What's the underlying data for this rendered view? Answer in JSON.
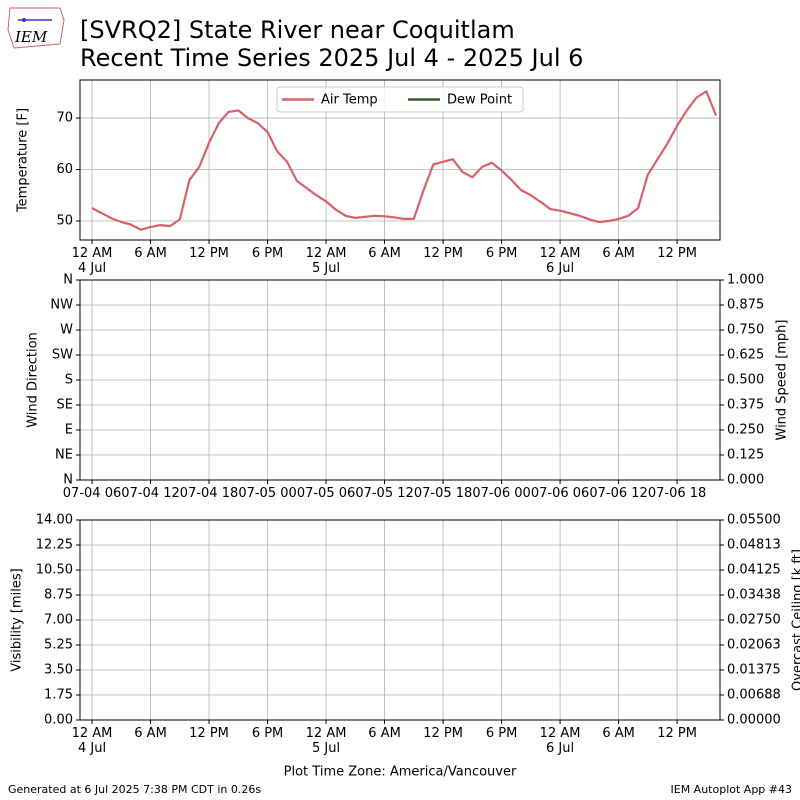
{
  "header": {
    "title": "[SVRQ2] State River near Coquitlam",
    "subtitle": "Recent Time Series 2025 Jul 4 - 2025 Jul 6",
    "logo": "IEM"
  },
  "footer": {
    "generated": "Generated at 6 Jul 2025 7:38 PM CDT in 0.26s",
    "app": "IEM Autoplot App #43"
  },
  "chart_data": [
    {
      "type": "line",
      "ylabel": "Temperature [F]",
      "grid": true,
      "legend": "upper center",
      "xlim": [
        "2025-07-03 22:46",
        "2025-07-06 16:24"
      ],
      "xticks": [
        {
          "value": "2025-07-04 00:00",
          "label": "12 AM\n4 Jul"
        },
        {
          "value": "2025-07-04 06:00",
          "label": "6 AM"
        },
        {
          "value": "2025-07-04 12:00",
          "label": "12 PM"
        },
        {
          "value": "2025-07-04 18:00",
          "label": "6 PM"
        },
        {
          "value": "2025-07-05 00:00",
          "label": "12 AM\n5 Jul"
        },
        {
          "value": "2025-07-05 06:00",
          "label": "6 AM"
        },
        {
          "value": "2025-07-05 12:00",
          "label": "12 PM"
        },
        {
          "value": "2025-07-05 18:00",
          "label": "6 PM"
        },
        {
          "value": "2025-07-06 00:00",
          "label": "12 AM\n6 Jul"
        },
        {
          "value": "2025-07-06 06:00",
          "label": "6 AM"
        },
        {
          "value": "2025-07-06 12:00",
          "label": "12 PM"
        }
      ],
      "ylim": [
        46.3,
        77.4
      ],
      "yticks": [
        50,
        60,
        70
      ],
      "x": [
        "2025-07-04 00:00",
        "2025-07-04 01:00",
        "2025-07-04 02:00",
        "2025-07-04 03:00",
        "2025-07-04 04:00",
        "2025-07-04 05:00",
        "2025-07-04 06:00",
        "2025-07-04 07:00",
        "2025-07-04 08:00",
        "2025-07-04 09:00",
        "2025-07-04 10:00",
        "2025-07-04 11:00",
        "2025-07-04 12:00",
        "2025-07-04 13:00",
        "2025-07-04 14:00",
        "2025-07-04 15:00",
        "2025-07-04 16:00",
        "2025-07-04 17:00",
        "2025-07-04 18:00",
        "2025-07-04 19:00",
        "2025-07-04 20:00",
        "2025-07-04 21:00",
        "2025-07-04 22:00",
        "2025-07-04 23:00",
        "2025-07-05 00:00",
        "2025-07-05 01:00",
        "2025-07-05 02:00",
        "2025-07-05 03:00",
        "2025-07-05 04:00",
        "2025-07-05 05:00",
        "2025-07-05 06:00",
        "2025-07-05 07:00",
        "2025-07-05 08:00",
        "2025-07-05 09:00",
        "2025-07-05 10:00",
        "2025-07-05 11:00",
        "2025-07-05 12:00",
        "2025-07-05 13:00",
        "2025-07-05 14:00",
        "2025-07-05 15:00",
        "2025-07-05 16:00",
        "2025-07-05 17:00",
        "2025-07-05 18:00",
        "2025-07-05 19:00",
        "2025-07-05 20:00",
        "2025-07-05 21:00",
        "2025-07-05 22:00",
        "2025-07-05 23:00",
        "2025-07-06 00:00",
        "2025-07-06 01:00",
        "2025-07-06 02:00",
        "2025-07-06 03:00",
        "2025-07-06 04:00",
        "2025-07-06 05:00",
        "2025-07-06 06:00",
        "2025-07-06 07:00",
        "2025-07-06 08:00",
        "2025-07-06 09:00",
        "2025-07-06 10:00",
        "2025-07-06 11:00",
        "2025-07-06 12:00",
        "2025-07-06 13:00",
        "2025-07-06 14:00",
        "2025-07-06 15:00",
        "2025-07-06 16:00"
      ],
      "series": [
        {
          "name": "Air Temp",
          "color": "#d9606a",
          "values": [
            52.5,
            51.5,
            50.5,
            49.8,
            49.3,
            48.3,
            48.8,
            49.2,
            49.0,
            50.3,
            58,
            60.5,
            65.2,
            69,
            71.2,
            71.5,
            70,
            69,
            67.3,
            63.5,
            61.5,
            57.8,
            56.4,
            55,
            53.8,
            52.2,
            51,
            50.6,
            50.8,
            51,
            50.9,
            50.7,
            50.4,
            50.4,
            56,
            61,
            61.5,
            62,
            59.5,
            58.5,
            60.5,
            61.3,
            59.8,
            58,
            56,
            55,
            53.7,
            52.3,
            52,
            51.5,
            51,
            50.3,
            49.8,
            50,
            50.4,
            51,
            52.5,
            59,
            62,
            65,
            68.5,
            71.5,
            74,
            75.2,
            70.5
          ]
        },
        {
          "name": "Dew Point",
          "color": "#2f5f2f",
          "values": [
            null,
            null,
            null,
            null,
            null,
            null,
            null,
            null,
            null,
            null,
            null,
            null,
            null,
            null,
            null,
            null,
            null,
            null,
            null,
            null,
            null,
            null,
            null,
            null,
            null,
            null,
            null,
            null,
            null,
            null,
            null,
            null,
            null,
            null,
            null,
            null,
            null,
            null,
            null,
            null,
            null,
            null,
            null,
            null,
            null,
            null,
            null,
            null,
            null,
            null,
            null,
            null,
            null,
            null,
            null,
            null,
            null,
            null,
            null,
            null,
            null,
            null,
            null,
            null,
            null
          ]
        }
      ]
    },
    {
      "type": "line",
      "ylabel": "Wind Direction",
      "y2label": "Wind Speed [mph]",
      "grid": true,
      "xlim": [
        "2025-07-04 04:46",
        "2025-07-06 22:24"
      ],
      "xticks": [
        {
          "value": "2025-07-04 06:00",
          "label": "07-04 06"
        },
        {
          "value": "2025-07-04 12:00",
          "label": "07-04 12"
        },
        {
          "value": "2025-07-04 18:00",
          "label": "07-04 18"
        },
        {
          "value": "2025-07-05 00:00",
          "label": "07-05 00"
        },
        {
          "value": "2025-07-05 06:00",
          "label": "07-05 06"
        },
        {
          "value": "2025-07-05 12:00",
          "label": "07-05 12"
        },
        {
          "value": "2025-07-05 18:00",
          "label": "07-05 18"
        },
        {
          "value": "2025-07-06 00:00",
          "label": "07-06 00"
        },
        {
          "value": "2025-07-06 06:00",
          "label": "07-06 06"
        },
        {
          "value": "2025-07-06 12:00",
          "label": "07-06 12"
        },
        {
          "value": "2025-07-06 18:00",
          "label": "07-06 18"
        }
      ],
      "ylim": [
        0,
        360
      ],
      "yticks": [
        {
          "value": 0,
          "label": "N"
        },
        {
          "value": 45,
          "label": "NE"
        },
        {
          "value": 90,
          "label": "E"
        },
        {
          "value": 135,
          "label": "SE"
        },
        {
          "value": 180,
          "label": "S"
        },
        {
          "value": 225,
          "label": "SW"
        },
        {
          "value": 270,
          "label": "W"
        },
        {
          "value": 315,
          "label": "NW"
        },
        {
          "value": 360,
          "label": "N"
        }
      ],
      "y2lim": [
        0,
        1
      ],
      "y2ticks": [
        {
          "value": 0,
          "label": "0.000"
        },
        {
          "value": 0.125,
          "label": "0.125"
        },
        {
          "value": 0.25,
          "label": "0.250"
        },
        {
          "value": 0.375,
          "label": "0.375"
        },
        {
          "value": 0.5,
          "label": "0.500"
        },
        {
          "value": 0.625,
          "label": "0.625"
        },
        {
          "value": 0.75,
          "label": "0.750"
        },
        {
          "value": 0.875,
          "label": "0.875"
        },
        {
          "value": 1,
          "label": "1.000"
        }
      ]
    },
    {
      "type": "line",
      "ylabel": "Visibility [miles]",
      "y2label": "Overcast Ceiling [k ft]",
      "y2label_color": "#008000",
      "xlabel": "Plot Time Zone: America/Vancouver",
      "grid": true,
      "xlim": [
        "2025-07-03 22:46",
        "2025-07-06 16:24"
      ],
      "xticks": [
        {
          "value": "2025-07-04 00:00",
          "label": "12 AM\n4 Jul"
        },
        {
          "value": "2025-07-04 06:00",
          "label": "6 AM"
        },
        {
          "value": "2025-07-04 12:00",
          "label": "12 PM"
        },
        {
          "value": "2025-07-04 18:00",
          "label": "6 PM"
        },
        {
          "value": "2025-07-05 00:00",
          "label": "12 AM\n5 Jul"
        },
        {
          "value": "2025-07-05 06:00",
          "label": "6 AM"
        },
        {
          "value": "2025-07-05 12:00",
          "label": "12 PM"
        },
        {
          "value": "2025-07-05 18:00",
          "label": "6 PM"
        },
        {
          "value": "2025-07-06 00:00",
          "label": "12 AM\n6 Jul"
        },
        {
          "value": "2025-07-06 06:00",
          "label": "6 AM"
        },
        {
          "value": "2025-07-06 12:00",
          "label": "12 PM"
        }
      ],
      "ylim": [
        0,
        14
      ],
      "yticks": [
        {
          "value": 0,
          "label": "0.00"
        },
        {
          "value": 1.75,
          "label": "1.75"
        },
        {
          "value": 3.5,
          "label": "3.50"
        },
        {
          "value": 5.25,
          "label": "5.25"
        },
        {
          "value": 7,
          "label": "7.00"
        },
        {
          "value": 8.75,
          "label": "8.75"
        },
        {
          "value": 10.5,
          "label": "10.50"
        },
        {
          "value": 12.25,
          "label": "12.25"
        },
        {
          "value": 14,
          "label": "14.00"
        }
      ],
      "y2lim": [
        0,
        0.055
      ],
      "y2ticks": [
        {
          "value": 0,
          "label": "0.00000"
        },
        {
          "value": 0.006875,
          "label": "0.00688"
        },
        {
          "value": 0.01375,
          "label": "0.01375"
        },
        {
          "value": 0.020625,
          "label": "0.02063"
        },
        {
          "value": 0.0275,
          "label": "0.02750"
        },
        {
          "value": 0.034375,
          "label": "0.03438"
        },
        {
          "value": 0.04125,
          "label": "0.04125"
        },
        {
          "value": 0.048125,
          "label": "0.04813"
        },
        {
          "value": 0.055,
          "label": "0.05500"
        }
      ]
    }
  ]
}
